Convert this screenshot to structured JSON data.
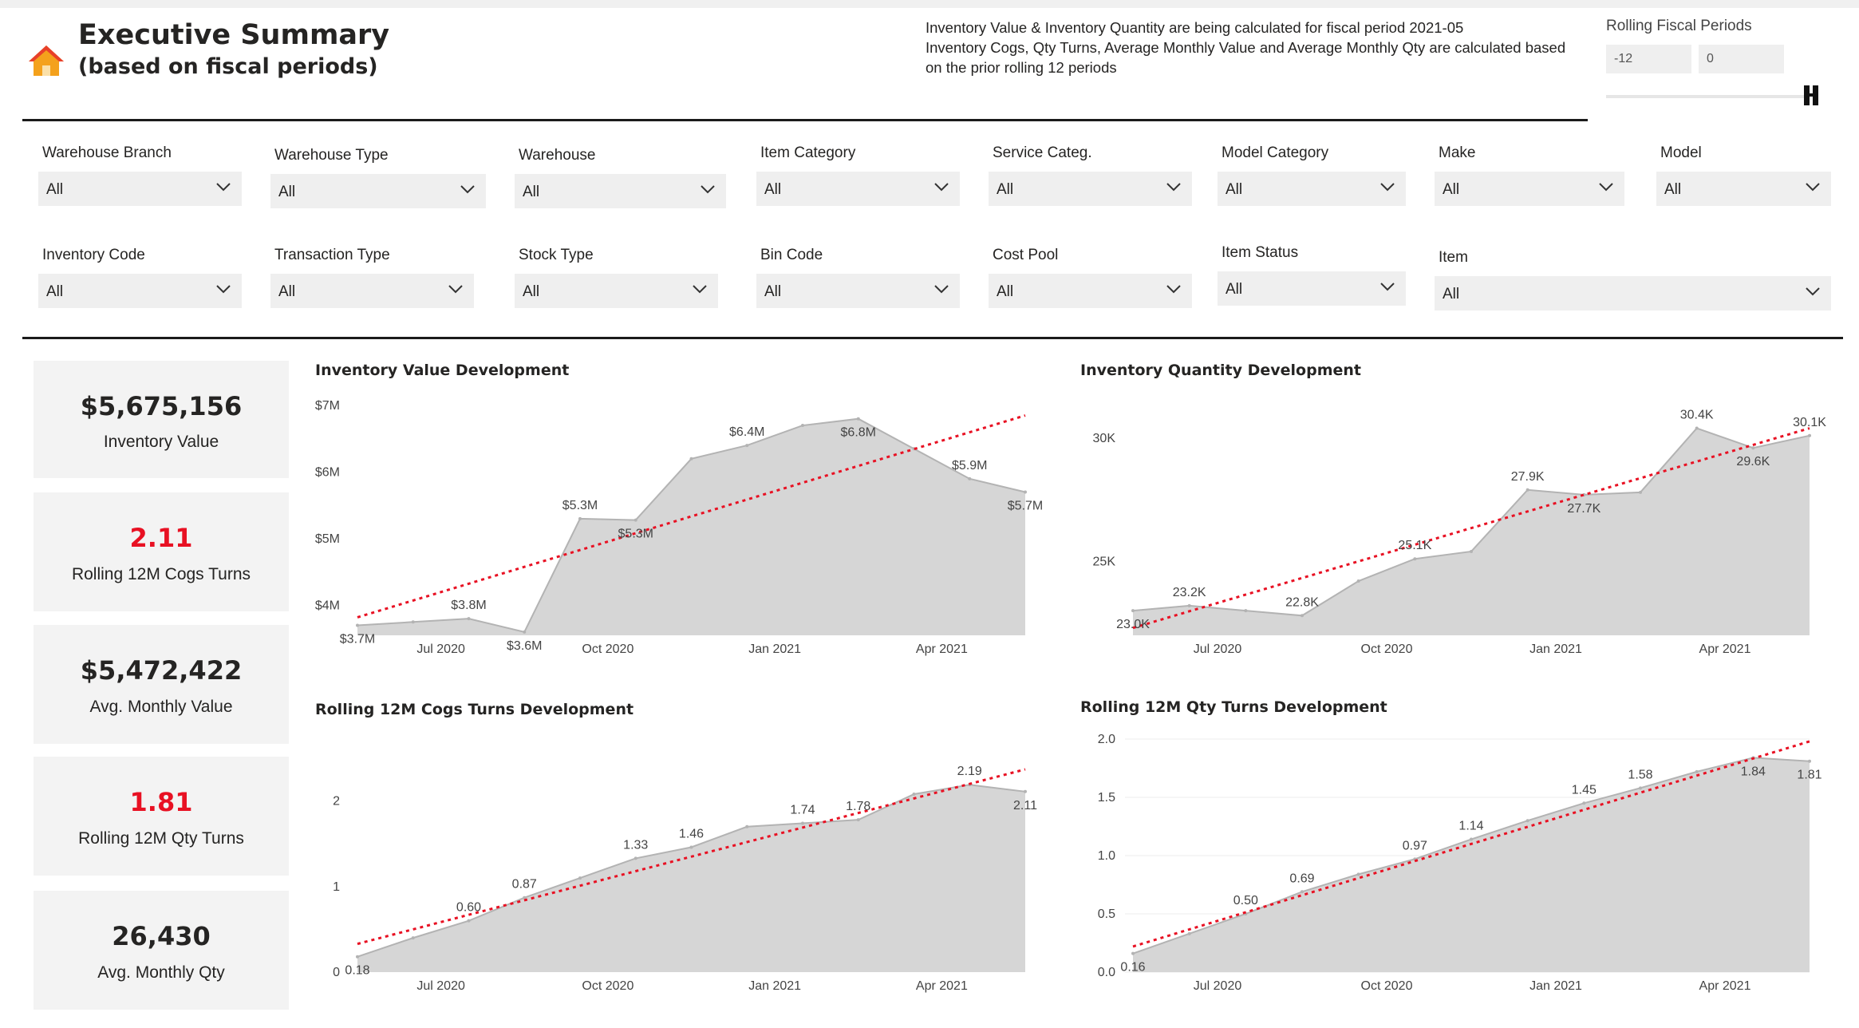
{
  "header": {
    "title": "Executive Summary",
    "subtitle": "(based on fiscal periods)",
    "note_lines": [
      "Inventory Value & Inventory Quantity are being calculated for fiscal period 2021-05",
      "Inventory Cogs, Qty Turns, Average Monthly Value and Average Monthly Qty are calculated based",
      "on the prior rolling 12 periods"
    ],
    "rolling": {
      "label": "Rolling Fiscal Periods",
      "from": "-12",
      "to": "0"
    }
  },
  "slicers": [
    {
      "label": "Warehouse Branch",
      "value": "All"
    },
    {
      "label": "Warehouse Type",
      "value": "All"
    },
    {
      "label": "Warehouse",
      "value": "All"
    },
    {
      "label": "Item Category",
      "value": "All"
    },
    {
      "label": "Service Categ.",
      "value": "All"
    },
    {
      "label": "Model Category",
      "value": "All"
    },
    {
      "label": "Make",
      "value": "All"
    },
    {
      "label": "Model",
      "value": "All"
    },
    {
      "label": "Inventory Code",
      "value": "All"
    },
    {
      "label": "Transaction Type",
      "value": "All"
    },
    {
      "label": "Stock Type",
      "value": "All"
    },
    {
      "label": "Bin Code",
      "value": "All"
    },
    {
      "label": "Cost Pool",
      "value": "All"
    },
    {
      "label": "Item Status",
      "value": "All"
    },
    {
      "label": "Item",
      "value": "All"
    }
  ],
  "kpis": [
    {
      "value": "$5,675,156",
      "label": "Inventory Value",
      "color": "#252423"
    },
    {
      "value": "2.11",
      "label": "Rolling 12M Cogs Turns",
      "color": "#e81123"
    },
    {
      "value": "$5,472,422",
      "label": "Avg. Monthly Value",
      "color": "#252423"
    },
    {
      "value": "1.81",
      "label": "Rolling 12M Qty Turns",
      "color": "#e81123"
    },
    {
      "value": "26,430",
      "label": "Avg. Monthly Qty",
      "color": "#252423"
    }
  ],
  "colors": {
    "area_fill": "#d6d6d6",
    "area_line": "#b3b3b3",
    "trend": "#e81123",
    "grid": "#eeeeee"
  },
  "chart_data": [
    {
      "id": "inv-value",
      "type": "area",
      "title": "Inventory Value Development",
      "x": [
        0,
        1,
        2,
        3,
        4,
        5,
        6,
        7,
        8,
        9,
        10,
        11,
        12
      ],
      "x_tick_labels": [
        {
          "x": 1.5,
          "label": "Jul 2020"
        },
        {
          "x": 4.5,
          "label": "Oct 2020"
        },
        {
          "x": 7.5,
          "label": "Jan 2021"
        },
        {
          "x": 10.5,
          "label": "Apr 2021"
        }
      ],
      "values": [
        3.7,
        3.75,
        3.8,
        3.6,
        5.3,
        5.28,
        6.2,
        6.4,
        6.7,
        6.8,
        6.35,
        5.9,
        5.7
      ],
      "data_labels": [
        "$3.7M",
        "",
        "$3.8M",
        "$3.6M",
        "$5.3M",
        "$5.3M",
        "",
        "$6.4M",
        "",
        "$6.8M",
        "",
        "$5.9M",
        "$5.7M"
      ],
      "label_pos": [
        "below",
        "",
        "above",
        "below",
        "above",
        "below",
        "",
        "above",
        "",
        "below",
        "",
        "above",
        "below"
      ],
      "ylim": [
        3.55,
        7
      ],
      "y_ticks": [
        {
          "v": 4,
          "label": "$4M"
        },
        {
          "v": 5,
          "label": "$5M"
        },
        {
          "v": 6,
          "label": "$6M"
        },
        {
          "v": 7,
          "label": "$7M"
        }
      ],
      "trend": [
        3.82,
        6.85
      ],
      "grid": false
    },
    {
      "id": "inv-qty",
      "type": "area",
      "title": "Inventory Quantity Development",
      "x": [
        0,
        1,
        2,
        3,
        4,
        5,
        6,
        7,
        8,
        9,
        10,
        11,
        12
      ],
      "x_tick_labels": [
        {
          "x": 1.5,
          "label": "Jul 2020"
        },
        {
          "x": 4.5,
          "label": "Oct 2020"
        },
        {
          "x": 7.5,
          "label": "Jan 2021"
        },
        {
          "x": 10.5,
          "label": "Apr 2021"
        }
      ],
      "values": [
        23.0,
        23.2,
        23.0,
        22.8,
        24.2,
        25.1,
        25.4,
        27.9,
        27.7,
        27.8,
        30.4,
        29.6,
        30.1
      ],
      "data_labels": [
        "23.0K",
        "23.2K",
        "",
        "22.8K",
        "",
        "25.1K",
        "",
        "27.9K",
        "27.7K",
        "",
        "30.4K",
        "29.6K",
        "30.1K"
      ],
      "label_pos": [
        "below",
        "above",
        "",
        "above",
        "",
        "above",
        "",
        "above",
        "below",
        "",
        "above",
        "below",
        "above"
      ],
      "ylim": [
        22.0,
        31.0
      ],
      "y_ticks": [
        {
          "v": 25,
          "label": "25K"
        },
        {
          "v": 30,
          "label": "30K"
        }
      ],
      "trend": [
        22.3,
        30.4
      ],
      "grid": false
    },
    {
      "id": "cogs-turns",
      "type": "area",
      "title": "Rolling 12M Cogs Turns Development",
      "x": [
        0,
        1,
        2,
        3,
        4,
        5,
        6,
        7,
        8,
        9,
        10,
        11,
        12
      ],
      "x_tick_labels": [
        {
          "x": 1.5,
          "label": "Jul 2020"
        },
        {
          "x": 4.5,
          "label": "Oct 2020"
        },
        {
          "x": 7.5,
          "label": "Jan 2021"
        },
        {
          "x": 10.5,
          "label": "Apr 2021"
        }
      ],
      "values": [
        0.18,
        0.4,
        0.6,
        0.87,
        1.1,
        1.33,
        1.46,
        1.7,
        1.74,
        1.78,
        2.08,
        2.19,
        2.11
      ],
      "data_labels": [
        "0.18",
        "",
        "0.60",
        "0.87",
        "",
        "1.33",
        "1.46",
        "",
        "1.74",
        "1.78",
        "",
        "2.19",
        "2.11"
      ],
      "label_pos": [
        "below",
        "",
        "above",
        "above",
        "",
        "above",
        "above",
        "",
        "above",
        "above",
        "",
        "above",
        "below"
      ],
      "ylim": [
        0,
        2.5
      ],
      "y_ticks": [
        {
          "v": 0,
          "label": "0"
        },
        {
          "v": 1,
          "label": "1"
        },
        {
          "v": 2,
          "label": "2"
        }
      ],
      "trend": [
        0.33,
        2.37
      ],
      "grid": false
    },
    {
      "id": "qty-turns",
      "type": "area",
      "title": "Rolling 12M Qty Turns Development",
      "x": [
        0,
        1,
        2,
        3,
        4,
        5,
        6,
        7,
        8,
        9,
        10,
        11,
        12
      ],
      "x_tick_labels": [
        {
          "x": 1.5,
          "label": "Jul 2020"
        },
        {
          "x": 4.5,
          "label": "Oct 2020"
        },
        {
          "x": 7.5,
          "label": "Jan 2021"
        },
        {
          "x": 10.5,
          "label": "Apr 2021"
        }
      ],
      "values": [
        0.16,
        0.33,
        0.5,
        0.69,
        0.84,
        0.97,
        1.14,
        1.3,
        1.45,
        1.58,
        1.72,
        1.84,
        1.81
      ],
      "data_labels": [
        "0.16",
        "",
        "0.50",
        "0.69",
        "",
        "0.97",
        "1.14",
        "",
        "1.45",
        "1.58",
        "",
        "1.84",
        "1.81"
      ],
      "label_pos": [
        "below",
        "",
        "above",
        "above",
        "",
        "above",
        "above",
        "",
        "above",
        "above",
        "",
        "below",
        "below"
      ],
      "ylim": [
        0,
        2.0
      ],
      "y_ticks": [
        {
          "v": 0,
          "label": "0.0"
        },
        {
          "v": 0.5,
          "label": "0.5"
        },
        {
          "v": 1.0,
          "label": "1.0"
        },
        {
          "v": 1.5,
          "label": "1.5"
        },
        {
          "v": 2.0,
          "label": "2.0"
        }
      ],
      "trend": [
        0.22,
        1.98
      ],
      "grid": true
    }
  ]
}
